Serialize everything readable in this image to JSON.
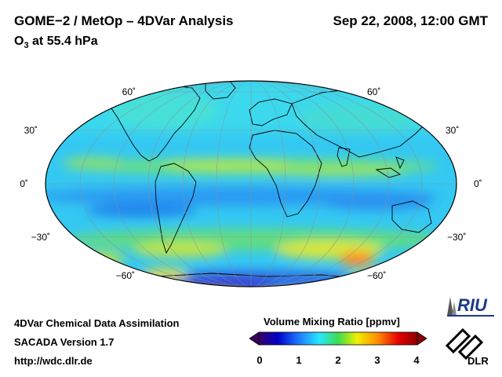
{
  "header": {
    "title": "GOME−2 / MetOp – 4DVar Analysis",
    "datetime": "Sep 22, 2008, 12:00 GMT",
    "subtitle_main": "O",
    "subtitle_sub": "3",
    "subtitle_rest": " at 55.4 hPa"
  },
  "map": {
    "projection": "Mollweide",
    "lat_labels_left": [
      "60˚",
      "30˚",
      "0˚",
      "−30˚",
      "−60˚"
    ],
    "lat_labels_right": [
      "60˚",
      "30˚",
      "0˚",
      "−30˚",
      "−60˚"
    ],
    "lat_values": [
      60,
      30,
      0,
      -30,
      -60
    ]
  },
  "colorbar": {
    "title": "Volume Mixing Ratio [ppmv]",
    "ticks": [
      "0",
      "1",
      "2",
      "3",
      "4"
    ],
    "min": 0,
    "max": 4,
    "colors": [
      "#3a0066",
      "#0000c8",
      "#1e78ff",
      "#28e6ff",
      "#3cdc50",
      "#f0f000",
      "#ff8c00",
      "#e60000",
      "#8c0000"
    ]
  },
  "footer": {
    "line1": "4DVar Chemical Data Assimilation",
    "line2": "SACADA Version 1.7",
    "line3": "http://wdc.dlr.de"
  },
  "logos": {
    "riu": "RIU",
    "dlr": "DLR"
  }
}
